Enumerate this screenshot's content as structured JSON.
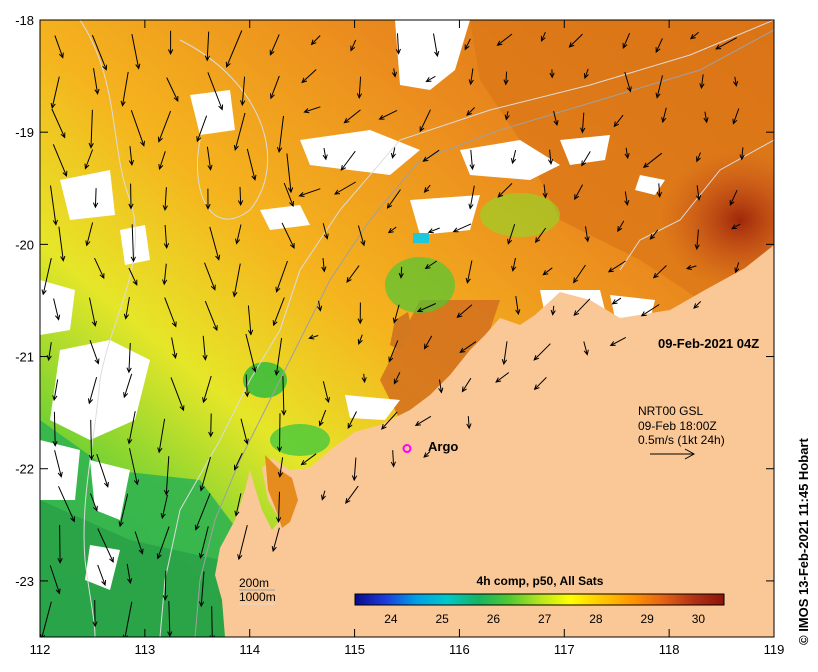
{
  "map": {
    "date_label": "09-Feb-2021 04Z",
    "credit": "© IMOS 13-Feb-2021 11:45 Hobart",
    "x_axis": {
      "range": [
        112,
        119
      ],
      "ticks": [
        {
          "value": 112,
          "label": "112"
        },
        {
          "value": 113,
          "label": "113"
        },
        {
          "value": 114,
          "label": "114"
        },
        {
          "value": 115,
          "label": "115"
        },
        {
          "value": 116,
          "label": "116"
        },
        {
          "value": 117,
          "label": "117"
        },
        {
          "value": 118,
          "label": "118"
        },
        {
          "value": 119,
          "label": "119"
        }
      ]
    },
    "y_axis": {
      "range": [
        -23.5,
        -18
      ],
      "ticks": [
        {
          "value": -18,
          "label": "-18"
        },
        {
          "value": -19,
          "label": "-19"
        },
        {
          "value": -20,
          "label": "-20"
        },
        {
          "value": -21,
          "label": "-21"
        },
        {
          "value": -22,
          "label": "-22"
        },
        {
          "value": -23,
          "label": "-23"
        }
      ]
    },
    "current_legend": {
      "line1": "NRT00 GSL",
      "line2": "09-Feb 18:00Z",
      "line3": "0.5m/s (1kt 24h)"
    },
    "argo": {
      "label": "Argo",
      "lon": 115.5,
      "lat": -21.82,
      "color": "#ff00ff"
    },
    "depth_legend": {
      "line1": "200m",
      "line2": "1000m"
    },
    "colorbar": {
      "title": "4h comp, p50, All Sats",
      "range": [
        23.3,
        30.5
      ],
      "ticks": [
        {
          "value": 24,
          "label": "24"
        },
        {
          "value": 25,
          "label": "25"
        },
        {
          "value": 26,
          "label": "26"
        },
        {
          "value": 27,
          "label": "27"
        },
        {
          "value": 28,
          "label": "28"
        },
        {
          "value": 29,
          "label": "29"
        },
        {
          "value": 30,
          "label": "30"
        }
      ],
      "stops": [
        "#0a0a8c",
        "#1e3cdc",
        "#00a0e6",
        "#00c8c8",
        "#14b464",
        "#50c832",
        "#b4e61e",
        "#ffff00",
        "#ffc800",
        "#ff9600",
        "#e66414",
        "#b43214",
        "#8c140a"
      ]
    },
    "colors": {
      "land": "#fac896",
      "cloud": "#ffffff",
      "warm": "#dc6e14",
      "hot": "#b43214",
      "mid": "#f0a01e",
      "yellow": "#dcf028",
      "green": "#50c832"
    }
  }
}
